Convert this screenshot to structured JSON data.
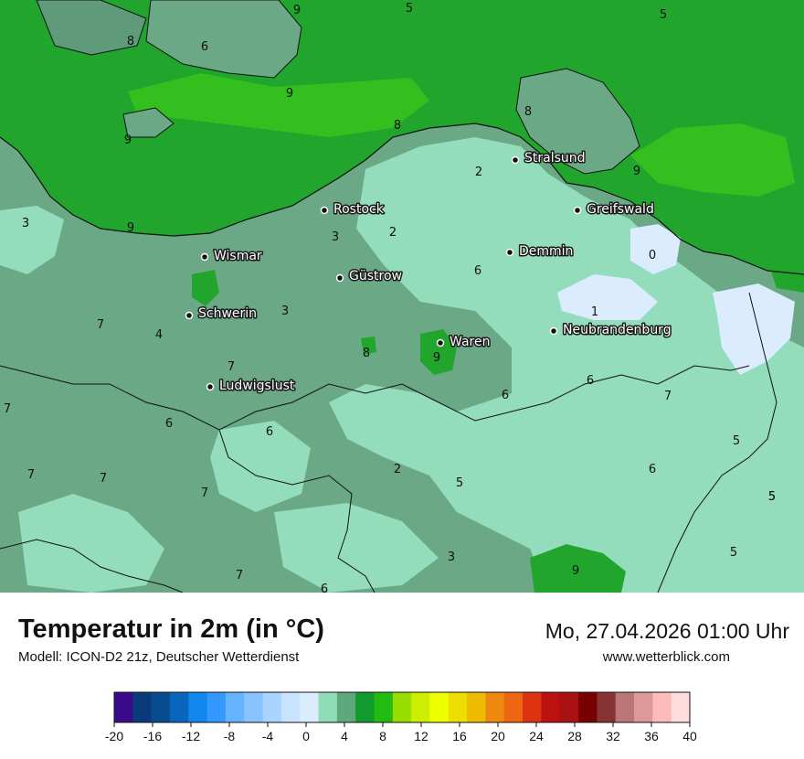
{
  "header": {
    "title": "Temperatur in 2m (in °C)",
    "subtitle": "Modell: ICON-D2 21z, Deutscher Wetterdienst",
    "datetime": "Mo, 27.04.2026 01:00 Uhr",
    "website": "www.wetterblick.com"
  },
  "map": {
    "cities": [
      {
        "name": "Stralsund"
      },
      {
        "name": "Rostock"
      },
      {
        "name": "Greifswald"
      },
      {
        "name": "Wismar"
      },
      {
        "name": "Demmin"
      },
      {
        "name": "Güstrow"
      },
      {
        "name": "Schwerin"
      },
      {
        "name": "Neubrandenburg"
      },
      {
        "name": "Waren"
      },
      {
        "name": "Ludwigslust"
      }
    ],
    "value_labels": [
      "9",
      "5",
      "6",
      "8",
      "5",
      "9",
      "8",
      "8",
      "9",
      "2",
      "9",
      "3",
      "3",
      "2",
      "6",
      "0",
      "9",
      "1",
      "4",
      "3",
      "7",
      "8",
      "9",
      "7",
      "6",
      "6",
      "6",
      "7",
      "6",
      "5",
      "5",
      "7",
      "2",
      "5",
      "6",
      "7",
      "5",
      "7",
      "7",
      "3",
      "9",
      "5",
      "7",
      "6"
    ]
  },
  "legend": {
    "colors": [
      "#3a0a8a",
      "#0a3a7a",
      "#084d8f",
      "#0a66bd",
      "#1188ee",
      "#3399ff",
      "#66b3ff",
      "#88c2ff",
      "#a8d4ff",
      "#c8e3ff",
      "#dcecff",
      "#8fdcb8",
      "#5ea87d",
      "#119a2e",
      "#22bb11",
      "#99dd00",
      "#ccee00",
      "#eeff00",
      "#eedd00",
      "#eebb00",
      "#ee8811",
      "#ee6611",
      "#dd3311",
      "#bb1111",
      "#aa1111",
      "#770000",
      "#883333",
      "#bb7777",
      "#dd9999",
      "#ffbbbb",
      "#ffdddd"
    ],
    "tick_labels": [
      "-20",
      "-16",
      "-12",
      "-8",
      "-4",
      "0",
      "4",
      "8",
      "12",
      "16",
      "20",
      "24",
      "28",
      "32",
      "36",
      "40"
    ]
  }
}
